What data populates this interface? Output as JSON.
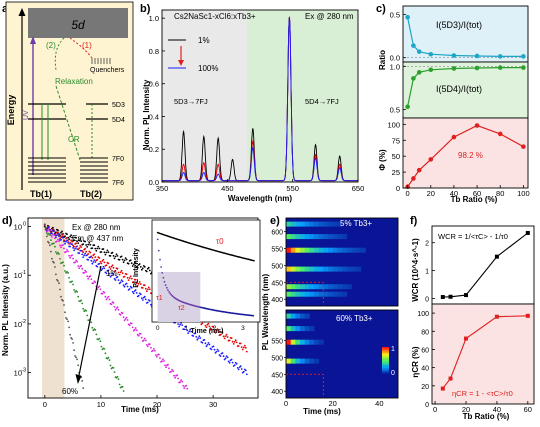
{
  "panel_labels": {
    "a": "a)",
    "b": "b)",
    "c": "c)",
    "d": "d)",
    "e": "e)",
    "f": "f)"
  },
  "panel_a": {
    "ylabel": "Energy",
    "level_5d": "5d",
    "path1": "(1)",
    "path2": "(2)",
    "quenchers": "Quenchers",
    "relaxation": "Relaxation",
    "uv": "UV",
    "cr": "CR",
    "d3": "5D3",
    "d4": "5D4",
    "f0": "7F0",
    "f6": "7F6",
    "ion1": "Tb(1)",
    "ion2": "Tb(2)"
  },
  "panel_b": {
    "chart_data": {
      "type": "line",
      "title_left": "Cs2NaSc1-xCl6:xTb3+",
      "title_right": "Ex @ 280 nm",
      "legend_top": "1%",
      "legend_bottom": "100%",
      "annotation_left": "5D3→7FJ",
      "annotation_right": "5D4→7FJ",
      "xlabel": "Wavelength (nm)",
      "ylabel": "Norm. PL Intensity",
      "xlim": [
        350,
        650
      ],
      "ylim": [
        0,
        1.05
      ],
      "xticks": [
        350,
        450,
        550,
        650
      ],
      "yticks": [
        0,
        0.2,
        0.4,
        0.6,
        0.8,
        1.0
      ],
      "ytick_labels": [
        "0.0",
        "0.2",
        "0.4",
        "0.6",
        "0.8",
        "1.0"
      ],
      "shaded_regions": [
        {
          "from": 350,
          "to": 480,
          "color": "#e9e9e9"
        },
        {
          "from": 480,
          "to": 650,
          "color": "#d8efd6"
        }
      ],
      "series": [
        {
          "color": "#000000",
          "peaks": [
            [
              383,
              0.3
            ],
            [
              414,
              0.27
            ],
            [
              436,
              0.26
            ],
            [
              458,
              0.13
            ],
            [
              489,
              0.32
            ],
            [
              545,
              1.0
            ],
            [
              585,
              0.22
            ],
            [
              622,
              0.15
            ]
          ]
        },
        {
          "color": "#e60000",
          "peaks": [
            [
              383,
              0.1
            ],
            [
              414,
              0.11
            ],
            [
              436,
              0.1
            ],
            [
              489,
              0.24
            ],
            [
              545,
              1.0
            ],
            [
              585,
              0.16
            ],
            [
              622,
              0.1
            ]
          ]
        },
        {
          "color": "#1a1aff",
          "peaks": [
            [
              383,
              0.05
            ],
            [
              414,
              0.05
            ],
            [
              436,
              0.04
            ],
            [
              489,
              0.2
            ],
            [
              545,
              1.0
            ],
            [
              585,
              0.14
            ],
            [
              622,
              0.08
            ]
          ]
        }
      ]
    }
  },
  "panel_c": {
    "chart_data": [
      {
        "type": "line",
        "ylabel": "Ratio",
        "label": "I(5D3)/I(tot)",
        "x": [
          0,
          5,
          10,
          20,
          40,
          60,
          80,
          100
        ],
        "values": [
          0.47,
          0.14,
          0.07,
          0.04,
          0.025,
          0.02,
          0.015,
          0.015
        ],
        "ylim": [
          -0.05,
          0.6
        ],
        "yticks": [
          0.0,
          0.5
        ],
        "color": "#1ca6c7"
      },
      {
        "type": "line",
        "label": "I(5D4)/I(tot)",
        "x": [
          0,
          5,
          10,
          20,
          40,
          60,
          80,
          100
        ],
        "values": [
          0.53,
          0.86,
          0.93,
          0.96,
          0.975,
          0.98,
          0.985,
          0.985
        ],
        "ylim": [
          0.4,
          1.05
        ],
        "yticks": [
          0.5,
          1.0
        ],
        "color": "#2ca02c"
      },
      {
        "type": "line",
        "ylabel": "Φ (%)",
        "annotation": "98.2 %",
        "x": [
          0,
          5,
          10,
          20,
          40,
          60,
          80,
          100
        ],
        "values": [
          2,
          15,
          28,
          45,
          80,
          98.2,
          85,
          65
        ],
        "ylim": [
          0,
          110
        ],
        "yticks": [
          0,
          25,
          50,
          75,
          100
        ],
        "color": "#e02020"
      }
    ],
    "xlabel": "Tb Ratio (%)",
    "xticks": [
      0,
      20,
      40,
      60,
      80,
      100
    ]
  },
  "panel_d": {
    "chart_data": {
      "type": "scatter",
      "xlabel": "Time (ms)",
      "ylabel": "Norm. PL Intensity (a.u.)",
      "annotation_ex": "Ex @ 280 nm",
      "annotation_em": "Em @ 437 nm",
      "label_top": "1%",
      "label_bottom": "60%",
      "xlim": [
        -3,
        38
      ],
      "xticks": [
        0,
        10,
        20,
        30
      ],
      "ylog": true,
      "ylim": [
        0.0003,
        1.5
      ],
      "yticks_exp": [
        0,
        -1,
        -2,
        -3
      ],
      "series": [
        {
          "color": "#000000",
          "tau": 9.0
        },
        {
          "color": "#e60000",
          "tau": 6.2
        },
        {
          "color": "#1a1aff",
          "tau": 5.2
        },
        {
          "color": "#e020e0",
          "tau": 3.3
        },
        {
          "color": "#2a8a2a",
          "tau": 1.8
        },
        {
          "color": "#555555",
          "tau": 0.9
        }
      ],
      "inset": {
        "xlabel": "Time (ms)",
        "ylabel": "PL Intensity",
        "tau0": "τ0",
        "tau1": "τ1",
        "tau2": "τ2",
        "xticks": [
          0,
          1,
          2,
          3
        ]
      }
    }
  },
  "panel_e": {
    "top_label": "5% Tb3+",
    "bottom_label": "60% Tb3+",
    "ylabel": "PL Wavelength (nm)",
    "xlabel": "Time (ms)",
    "yticks": [
      400,
      450,
      500,
      550,
      600
    ],
    "xticks": [
      0,
      20,
      40
    ],
    "colorbar_max": "1",
    "colorbar_min": "0",
    "bands_top": [
      [
        415,
        0.5
      ],
      [
        437,
        0.6
      ],
      [
        489,
        0.8
      ],
      [
        545,
        1.0
      ],
      [
        585,
        0.5
      ],
      [
        622,
        0.4
      ]
    ],
    "bands_bottom": [
      [
        489,
        0.7
      ],
      [
        545,
        1.0
      ],
      [
        585,
        0.5
      ],
      [
        622,
        0.4
      ]
    ]
  },
  "panel_f": {
    "chart_data": [
      {
        "type": "line",
        "ylabel": "WCR (10^4·s^-1)",
        "formula": "WCR = 1/<τC> - 1/τ0",
        "x": [
          5,
          10,
          20,
          40,
          60
        ],
        "values": [
          0.05,
          0.06,
          0.12,
          1.5,
          2.35
        ],
        "ylim": [
          -0.2,
          2.6
        ],
        "yticks": [
          0,
          1,
          2
        ],
        "color": "#000000"
      },
      {
        "type": "line",
        "ylabel": "ηCR (%)",
        "formula": "ηCR = 1 - <τC>/τ0",
        "x": [
          5,
          10,
          20,
          40,
          60
        ],
        "values": [
          17,
          28,
          72,
          96,
          97
        ],
        "ylim": [
          0,
          110
        ],
        "yticks": [
          0,
          20,
          40,
          60,
          80,
          100
        ],
        "color": "#e02020"
      }
    ],
    "xlabel": "Tb Ratio (%)",
    "xticks": [
      0,
      20,
      40,
      60
    ]
  }
}
